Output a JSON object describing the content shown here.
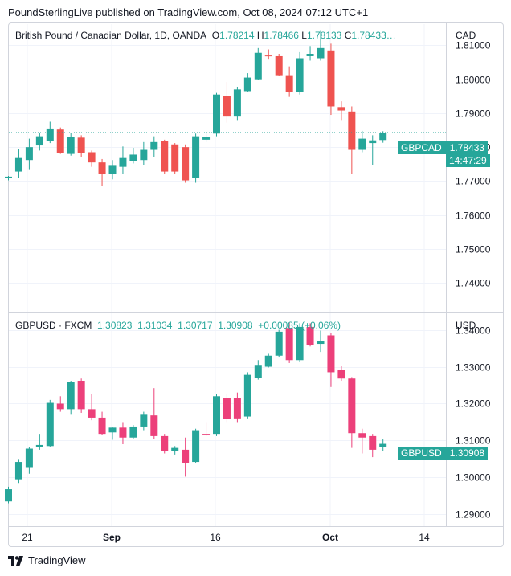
{
  "header": {
    "publisher": "PoundSterlingLive published on TradingView.com, Oct 08, 2024 07:12 UTC+1"
  },
  "footer": {
    "brand": "TradingView",
    "logo_icon": "tradingview-logo-icon"
  },
  "colors": {
    "up": "#26a69a",
    "down_top": "#ef5350",
    "down_bottom": "#ec407a",
    "grid": "#f0f3fa",
    "axis_text": "#131722"
  },
  "x_axis": {
    "labels": [
      "21",
      "Sep",
      "16",
      "Oct",
      "14"
    ]
  },
  "chart_data": [
    {
      "type": "candlestick",
      "title": "British Pound / Canadian Dollar, 1D, OANDA",
      "legend": {
        "open_label": "O",
        "open": "1.78214",
        "high_label": "H",
        "high": "1.78466",
        "low_label": "L",
        "low": "1.78133",
        "close_label": "C",
        "close": "1.78433…"
      },
      "currency": "CAD",
      "ylim": [
        1.7315,
        1.8165
      ],
      "yticks": [
        "1.81000",
        "1.80000",
        "1.79000",
        "1.78000",
        "1.77000",
        "1.76000",
        "1.75000",
        "1.74000"
      ],
      "last_price": {
        "symbol": "GBPCAD",
        "value": "1.78433",
        "countdown": "14:47:29"
      },
      "candles": [
        {
          "o": 1.771,
          "h": 1.7715,
          "l": 1.7702,
          "c": 1.7713
        },
        {
          "o": 1.7728,
          "h": 1.7795,
          "l": 1.771,
          "c": 1.7768
        },
        {
          "o": 1.7762,
          "h": 1.7825,
          "l": 1.7735,
          "c": 1.78
        },
        {
          "o": 1.7805,
          "h": 1.7842,
          "l": 1.779,
          "c": 1.7832
        },
        {
          "o": 1.7818,
          "h": 1.7875,
          "l": 1.7812,
          "c": 1.7855
        },
        {
          "o": 1.7852,
          "h": 1.7858,
          "l": 1.778,
          "c": 1.7782
        },
        {
          "o": 1.778,
          "h": 1.7842,
          "l": 1.7775,
          "c": 1.783
        },
        {
          "o": 1.7828,
          "h": 1.7835,
          "l": 1.7772,
          "c": 1.7782
        },
        {
          "o": 1.7785,
          "h": 1.779,
          "l": 1.7742,
          "c": 1.7755
        },
        {
          "o": 1.7755,
          "h": 1.7765,
          "l": 1.7685,
          "c": 1.772
        },
        {
          "o": 1.7722,
          "h": 1.7762,
          "l": 1.7705,
          "c": 1.7745
        },
        {
          "o": 1.7742,
          "h": 1.7802,
          "l": 1.772,
          "c": 1.7768
        },
        {
          "o": 1.776,
          "h": 1.7798,
          "l": 1.7752,
          "c": 1.7778
        },
        {
          "o": 1.7762,
          "h": 1.7815,
          "l": 1.7748,
          "c": 1.7792
        },
        {
          "o": 1.7792,
          "h": 1.7832,
          "l": 1.7772,
          "c": 1.7815
        },
        {
          "o": 1.7818,
          "h": 1.7822,
          "l": 1.7722,
          "c": 1.7728
        },
        {
          "o": 1.7808,
          "h": 1.7812,
          "l": 1.772,
          "c": 1.7728
        },
        {
          "o": 1.78,
          "h": 1.7808,
          "l": 1.7695,
          "c": 1.7702
        },
        {
          "o": 1.771,
          "h": 1.784,
          "l": 1.7695,
          "c": 1.7832
        },
        {
          "o": 1.7822,
          "h": 1.7842,
          "l": 1.7815,
          "c": 1.783
        },
        {
          "o": 1.784,
          "h": 1.796,
          "l": 1.7832,
          "c": 1.7955
        },
        {
          "o": 1.795,
          "h": 1.7992,
          "l": 1.7872,
          "c": 1.789
        },
        {
          "o": 1.789,
          "h": 1.7978,
          "l": 1.788,
          "c": 1.797
        },
        {
          "o": 1.7965,
          "h": 1.8018,
          "l": 1.7962,
          "c": 1.8005
        },
        {
          "o": 1.8,
          "h": 1.8092,
          "l": 1.7998,
          "c": 1.8078
        },
        {
          "o": 1.807,
          "h": 1.8088,
          "l": 1.8058,
          "c": 1.8068
        },
        {
          "o": 1.8068,
          "h": 1.8075,
          "l": 1.801,
          "c": 1.8012
        },
        {
          "o": 1.8012,
          "h": 1.8038,
          "l": 1.7948,
          "c": 1.7962
        },
        {
          "o": 1.7962,
          "h": 1.808,
          "l": 1.7955,
          "c": 1.8062
        },
        {
          "o": 1.8068,
          "h": 1.8098,
          "l": 1.8055,
          "c": 1.8075
        },
        {
          "o": 1.8062,
          "h": 1.8145,
          "l": 1.8055,
          "c": 1.8092
        },
        {
          "o": 1.8085,
          "h": 1.8105,
          "l": 1.7895,
          "c": 1.792
        },
        {
          "o": 1.7918,
          "h": 1.7935,
          "l": 1.788,
          "c": 1.7908
        },
        {
          "o": 1.7905,
          "h": 1.792,
          "l": 1.7722,
          "c": 1.7792
        },
        {
          "o": 1.7792,
          "h": 1.7848,
          "l": 1.7785,
          "c": 1.7825
        },
        {
          "o": 1.7812,
          "h": 1.7835,
          "l": 1.7748,
          "c": 1.782
        },
        {
          "o": 1.7821,
          "h": 1.7847,
          "l": 1.7813,
          "c": 1.7843
        }
      ]
    },
    {
      "type": "candlestick",
      "title": "GBPUSD · FXCM",
      "legend": {
        "open": "1.30823",
        "high": "1.31034",
        "low": "1.30717",
        "close": "1.30908",
        "change": "+0.00085 (+0.06%)"
      },
      "currency": "USD",
      "ylim": [
        1.2868,
        1.3447
      ],
      "yticks": [
        "1.34000",
        "1.33000",
        "1.32000",
        "1.31000",
        "1.30000",
        "1.29000"
      ],
      "last_price": {
        "symbol": "GBPUSD",
        "value": "1.30908"
      },
      "candles": [
        {
          "o": 1.2935,
          "h": 1.2975,
          "l": 1.293,
          "c": 1.2968
        },
        {
          "o": 1.2995,
          "h": 1.305,
          "l": 1.2985,
          "c": 1.3042
        },
        {
          "o": 1.3028,
          "h": 1.3082,
          "l": 1.301,
          "c": 1.3078
        },
        {
          "o": 1.3082,
          "h": 1.3118,
          "l": 1.3075,
          "c": 1.3088
        },
        {
          "o": 1.3085,
          "h": 1.321,
          "l": 1.3082,
          "c": 1.3202
        },
        {
          "o": 1.32,
          "h": 1.322,
          "l": 1.3178,
          "c": 1.3185
        },
        {
          "o": 1.3185,
          "h": 1.3262,
          "l": 1.3172,
          "c": 1.3258
        },
        {
          "o": 1.3262,
          "h": 1.3268,
          "l": 1.3175,
          "c": 1.3185
        },
        {
          "o": 1.3185,
          "h": 1.3225,
          "l": 1.3155,
          "c": 1.3162
        },
        {
          "o": 1.3162,
          "h": 1.3178,
          "l": 1.3115,
          "c": 1.3118
        },
        {
          "o": 1.3122,
          "h": 1.3138,
          "l": 1.3102,
          "c": 1.3135
        },
        {
          "o": 1.3135,
          "h": 1.315,
          "l": 1.309,
          "c": 1.3108
        },
        {
          "o": 1.3108,
          "h": 1.3142,
          "l": 1.3105,
          "c": 1.3138
        },
        {
          "o": 1.3138,
          "h": 1.3178,
          "l": 1.3128,
          "c": 1.3172
        },
        {
          "o": 1.3168,
          "h": 1.3242,
          "l": 1.3105,
          "c": 1.3112
        },
        {
          "o": 1.3112,
          "h": 1.3118,
          "l": 1.3065,
          "c": 1.3072
        },
        {
          "o": 1.3072,
          "h": 1.3085,
          "l": 1.3062,
          "c": 1.308
        },
        {
          "o": 1.3075,
          "h": 1.3108,
          "l": 1.3002,
          "c": 1.304
        },
        {
          "o": 1.3042,
          "h": 1.3132,
          "l": 1.304,
          "c": 1.3128
        },
        {
          "o": 1.3118,
          "h": 1.315,
          "l": 1.3112,
          "c": 1.3115
        },
        {
          "o": 1.3118,
          "h": 1.3225,
          "l": 1.3112,
          "c": 1.322
        },
        {
          "o": 1.3215,
          "h": 1.3225,
          "l": 1.315,
          "c": 1.3158
        },
        {
          "o": 1.3215,
          "h": 1.323,
          "l": 1.315,
          "c": 1.316
        },
        {
          "o": 1.3165,
          "h": 1.3285,
          "l": 1.316,
          "c": 1.3278
        },
        {
          "o": 1.327,
          "h": 1.3318,
          "l": 1.3265,
          "c": 1.3305
        },
        {
          "o": 1.33,
          "h": 1.3335,
          "l": 1.3298,
          "c": 1.333
        },
        {
          "o": 1.333,
          "h": 1.34,
          "l": 1.3325,
          "c": 1.3395
        },
        {
          "o": 1.3405,
          "h": 1.342,
          "l": 1.331,
          "c": 1.3318
        },
        {
          "o": 1.3318,
          "h": 1.3418,
          "l": 1.3312,
          "c": 1.3408
        },
        {
          "o": 1.3408,
          "h": 1.3418,
          "l": 1.3355,
          "c": 1.3358
        },
        {
          "o": 1.3362,
          "h": 1.3398,
          "l": 1.334,
          "c": 1.337
        },
        {
          "o": 1.3385,
          "h": 1.3392,
          "l": 1.3245,
          "c": 1.3285
        },
        {
          "o": 1.3292,
          "h": 1.3302,
          "l": 1.3262,
          "c": 1.3268
        },
        {
          "o": 1.3268,
          "h": 1.3272,
          "l": 1.308,
          "c": 1.312
        },
        {
          "o": 1.312,
          "h": 1.3132,
          "l": 1.3065,
          "c": 1.3108
        },
        {
          "o": 1.3112,
          "h": 1.3118,
          "l": 1.3055,
          "c": 1.3075
        },
        {
          "o": 1.3082,
          "h": 1.3103,
          "l": 1.3072,
          "c": 1.3091
        }
      ]
    }
  ]
}
